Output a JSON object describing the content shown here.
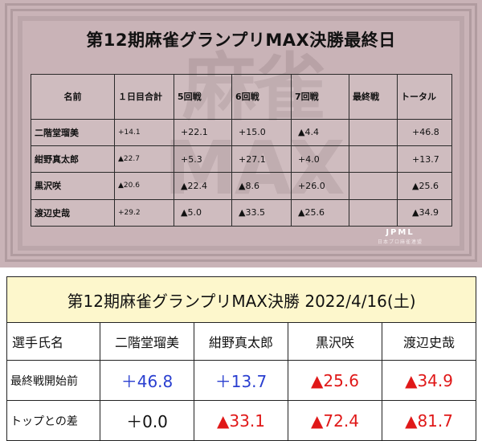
{
  "top_panel": {
    "title": "第12期麻雀グランプリMAX決勝最終日",
    "watermark_logo": "JPML",
    "watermark_logo_sub": "日本プロ麻雀連盟",
    "columns": [
      "名前",
      "１日目合計",
      "5回戦",
      "6回戦",
      "7回戦",
      "最終戦",
      "トータル"
    ],
    "rows": [
      {
        "name": "二階堂瑠美",
        "day1": "+14.1",
        "g5": "+22.1",
        "g6": "+15.0",
        "g7": "▲4.4",
        "final": "",
        "total": "+46.8"
      },
      {
        "name": "紺野真太郎",
        "day1": "▲22.7",
        "g5": "+5.3",
        "g6": "+27.1",
        "g7": "+4.0",
        "final": "",
        "total": "+13.7"
      },
      {
        "name": "黒沢咲",
        "day1": "▲20.6",
        "g5": "▲22.4",
        "g6": "▲8.6",
        "g7": "+26.0",
        "final": "",
        "total": "▲25.6"
      },
      {
        "name": "渡辺史哉",
        "day1": "+29.2",
        "g5": "▲5.0",
        "g6": "▲33.5",
        "g7": "▲25.6",
        "final": "",
        "total": "▲34.9"
      }
    ]
  },
  "bottom_panel": {
    "title": "第12期麻雀グランプリMAX決勝 2022/4/16(土)",
    "header_label": "選手氏名",
    "players": [
      "二階堂瑠美",
      "紺野真太郎",
      "黒沢咲",
      "渡辺史哉"
    ],
    "rows": [
      {
        "label": "最終戦開始前",
        "values": [
          "＋46.8",
          "＋13.7",
          "▲25.6",
          "▲34.9"
        ]
      },
      {
        "label": "トップとの差",
        "values": [
          "＋0.0",
          "▲33.1",
          "▲72.4",
          "▲81.7"
        ]
      }
    ],
    "colors": {
      "positive": "#2a3fd0",
      "negative": "#e01818",
      "banner_bg": "#fdf7cc"
    }
  }
}
